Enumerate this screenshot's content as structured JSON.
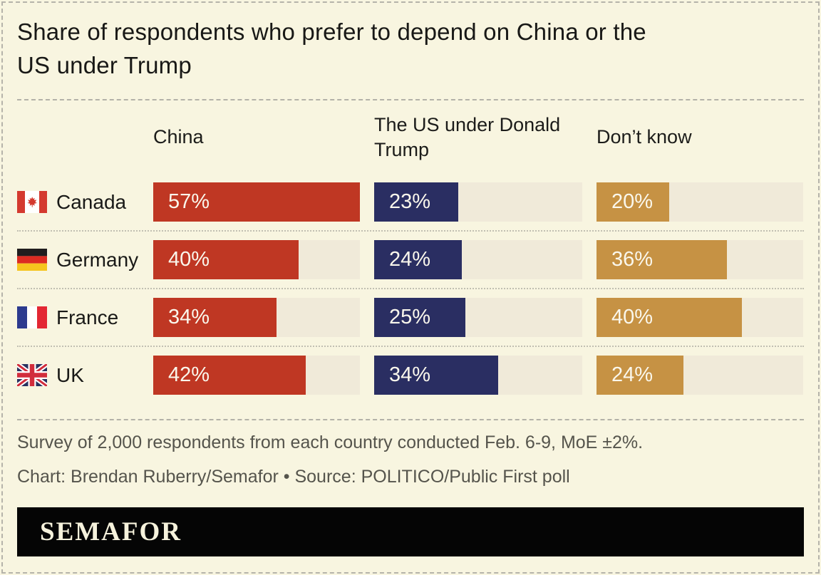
{
  "title": "Share of respondents who prefer to depend on China or the US under Trump",
  "title_lines": [
    "Share of respondents who prefer to depend on China or the",
    "US under Trump"
  ],
  "chart_data": {
    "type": "bar",
    "orientation": "horizontal",
    "title": "Share of respondents who prefer to depend on China or the US under Trump",
    "categories": [
      "Canada",
      "Germany",
      "France",
      "UK"
    ],
    "series": [
      {
        "name": "China",
        "values": [
          57,
          40,
          34,
          42
        ],
        "color": "#bf3723"
      },
      {
        "name": "The US under Donald Trump",
        "values": [
          23,
          24,
          25,
          34
        ],
        "color": "#2a2e62"
      },
      {
        "name": "Don’t know",
        "values": [
          20,
          36,
          40,
          24
        ],
        "color": "#c69244"
      }
    ],
    "unit": "%",
    "scale_max": 57,
    "value_labels": "inside-bar-left",
    "legend_position": "column-headers-top",
    "grid": false,
    "flag_icons": [
      "canada-flag",
      "germany-flag",
      "france-flag",
      "uk-flag"
    ],
    "track_color": "#f0ead9",
    "background_color": "#f8f5e0"
  },
  "footer": {
    "note": "Survey of 2,000 respondents from each country conducted Feb. 6-9, MoE ±2%.",
    "credit": "Chart: Brendan Ruberry/Semafor • Source: POLITICO/Public First poll",
    "logo": "SEMAFOR"
  },
  "theme": {
    "background": "#f8f5e0",
    "track": "#f0ead9",
    "china_red": "#bf3723",
    "us_navy": "#2a2e62",
    "dont_know_gold": "#c69244",
    "logo_bar": "#050505",
    "text_dark": "#181816",
    "text_muted": "#55544c",
    "dashed_line": "#b3b1a8"
  }
}
